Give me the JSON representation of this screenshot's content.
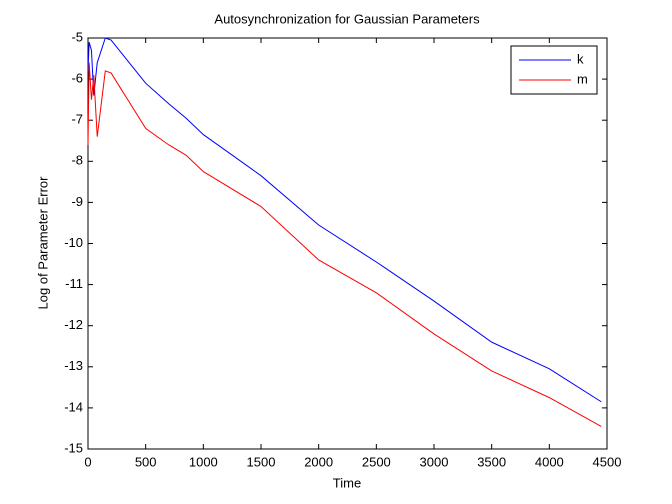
{
  "chart_data": {
    "type": "line",
    "title": "Autosynchronization for Gaussian Parameters",
    "xlabel": "Time",
    "ylabel": "Log of Parameter Error",
    "xlim": [
      0,
      4500
    ],
    "ylim": [
      -15,
      -5
    ],
    "xticks": [
      0,
      500,
      1000,
      1500,
      2000,
      2500,
      3000,
      3500,
      4000,
      4500
    ],
    "yticks": [
      -15,
      -14,
      -13,
      -12,
      -11,
      -10,
      -9,
      -8,
      -7,
      -6,
      -5
    ],
    "legend": "northeast",
    "grid": false,
    "x": [
      0,
      10,
      30,
      50,
      80,
      150,
      200,
      300,
      500,
      700,
      850,
      1000,
      1500,
      2000,
      2500,
      3000,
      3500,
      4000,
      4450
    ],
    "series": [
      {
        "name": "k",
        "color": "#0000ff",
        "values": [
          -5.8,
          -5.1,
          -5.3,
          -6.4,
          -5.6,
          -5.0,
          -5.05,
          -5.4,
          -6.1,
          -6.6,
          -6.95,
          -7.35,
          -8.35,
          -9.55,
          -10.45,
          -11.4,
          -12.4,
          -13.05,
          -13.85
        ]
      },
      {
        "name": "m",
        "color": "#ff0000",
        "values": [
          -7.6,
          -5.6,
          -6.5,
          -5.9,
          -7.4,
          -5.8,
          -5.85,
          -6.3,
          -7.2,
          -7.6,
          -7.85,
          -8.25,
          -9.1,
          -10.4,
          -11.2,
          -12.2,
          -13.1,
          -13.75,
          -14.45
        ]
      }
    ]
  }
}
